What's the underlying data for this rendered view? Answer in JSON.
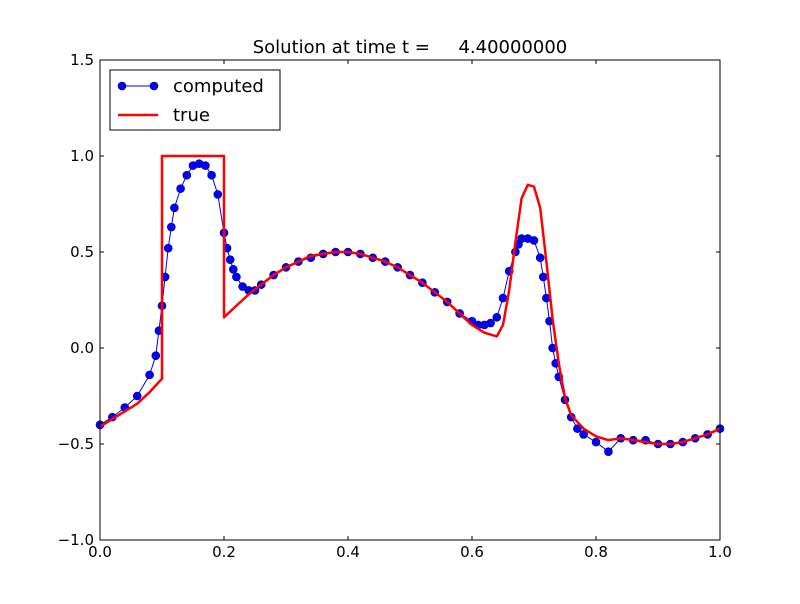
{
  "chart_data": {
    "type": "line",
    "title": "Solution at time t =     4.40000000",
    "xlabel": "",
    "ylabel": "",
    "xlim": [
      0.0,
      1.0
    ],
    "ylim": [
      -1.0,
      1.5
    ],
    "xticks": [
      0.0,
      0.2,
      0.4,
      0.6,
      0.8,
      1.0
    ],
    "yticks": [
      -1.0,
      -0.5,
      0.0,
      0.5,
      1.0,
      1.5
    ],
    "xtick_labels": [
      "0.0",
      "0.2",
      "0.4",
      "0.6",
      "0.8",
      "1.0"
    ],
    "ytick_labels": [
      "−1.0",
      "−0.5",
      "0.0",
      "0.5",
      "1.0",
      "1.5"
    ],
    "grid": false,
    "legend": {
      "placement": "top-left",
      "entries": [
        "computed",
        "true"
      ]
    },
    "series": [
      {
        "name": "computed",
        "color": "#0000ff",
        "style": "line-with-circle-markers",
        "x": [
          0.0,
          0.02,
          0.04,
          0.06,
          0.08,
          0.09,
          0.095,
          0.1,
          0.105,
          0.11,
          0.115,
          0.12,
          0.13,
          0.14,
          0.15,
          0.16,
          0.17,
          0.18,
          0.19,
          0.2,
          0.205,
          0.21,
          0.215,
          0.22,
          0.23,
          0.24,
          0.25,
          0.26,
          0.28,
          0.3,
          0.32,
          0.34,
          0.36,
          0.38,
          0.4,
          0.42,
          0.44,
          0.46,
          0.48,
          0.5,
          0.52,
          0.54,
          0.56,
          0.58,
          0.6,
          0.61,
          0.62,
          0.63,
          0.64,
          0.65,
          0.66,
          0.67,
          0.675,
          0.68,
          0.69,
          0.7,
          0.71,
          0.715,
          0.72,
          0.725,
          0.73,
          0.735,
          0.74,
          0.75,
          0.76,
          0.77,
          0.78,
          0.8,
          0.82,
          0.84,
          0.86,
          0.88,
          0.9,
          0.92,
          0.94,
          0.96,
          0.98,
          1.0
        ],
        "y": [
          -0.4,
          -0.36,
          -0.31,
          -0.25,
          -0.14,
          -0.04,
          0.09,
          0.22,
          0.37,
          0.52,
          0.63,
          0.73,
          0.83,
          0.9,
          0.95,
          0.96,
          0.95,
          0.9,
          0.8,
          0.6,
          0.52,
          0.46,
          0.41,
          0.37,
          0.32,
          0.3,
          0.3,
          0.33,
          0.38,
          0.42,
          0.45,
          0.47,
          0.49,
          0.5,
          0.5,
          0.49,
          0.47,
          0.45,
          0.42,
          0.38,
          0.34,
          0.29,
          0.24,
          0.18,
          0.14,
          0.12,
          0.12,
          0.13,
          0.16,
          0.26,
          0.4,
          0.5,
          0.54,
          0.57,
          0.57,
          0.56,
          0.47,
          0.37,
          0.26,
          0.14,
          0.0,
          -0.08,
          -0.15,
          -0.27,
          -0.36,
          -0.42,
          -0.45,
          -0.49,
          -0.54,
          -0.47,
          -0.48,
          -0.48,
          -0.5,
          -0.5,
          -0.49,
          -0.47,
          -0.45,
          -0.42
        ]
      },
      {
        "name": "true",
        "color": "#ff0000",
        "style": "line",
        "x": [
          0.0,
          0.03,
          0.06,
          0.08,
          0.1,
          0.1,
          0.2,
          0.2,
          0.22,
          0.24,
          0.26,
          0.28,
          0.3,
          0.32,
          0.34,
          0.36,
          0.38,
          0.4,
          0.42,
          0.44,
          0.46,
          0.48,
          0.5,
          0.52,
          0.54,
          0.56,
          0.58,
          0.6,
          0.62,
          0.64,
          0.65,
          0.66,
          0.67,
          0.68,
          0.69,
          0.7,
          0.71,
          0.72,
          0.73,
          0.74,
          0.75,
          0.76,
          0.78,
          0.8,
          0.82,
          0.84,
          0.86,
          0.88,
          0.9,
          0.92,
          0.94,
          0.96,
          0.98,
          1.0
        ],
        "y": [
          -0.41,
          -0.35,
          -0.29,
          -0.23,
          -0.16,
          1.0,
          1.0,
          0.16,
          0.22,
          0.28,
          0.33,
          0.38,
          0.42,
          0.45,
          0.48,
          0.49,
          0.5,
          0.5,
          0.49,
          0.47,
          0.45,
          0.42,
          0.38,
          0.34,
          0.29,
          0.24,
          0.18,
          0.12,
          0.08,
          0.06,
          0.12,
          0.3,
          0.55,
          0.78,
          0.85,
          0.84,
          0.73,
          0.45,
          0.15,
          -0.08,
          -0.26,
          -0.35,
          -0.42,
          -0.46,
          -0.48,
          -0.47,
          -0.48,
          -0.49,
          -0.5,
          -0.5,
          -0.49,
          -0.47,
          -0.45,
          -0.42
        ]
      }
    ]
  }
}
